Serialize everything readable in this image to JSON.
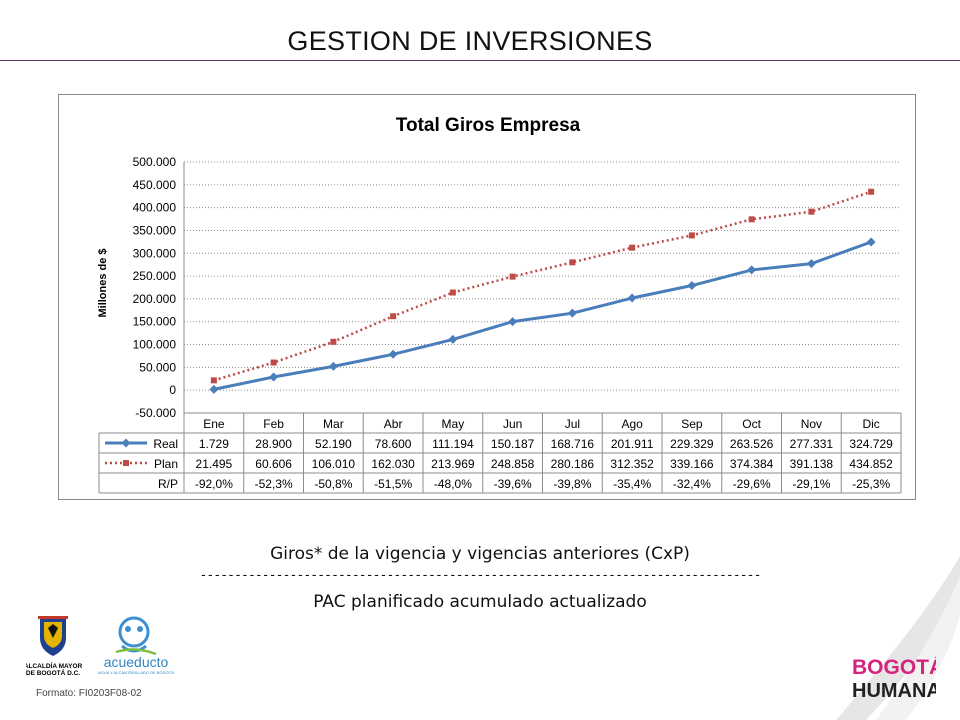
{
  "slide": {
    "title": "GESTION DE INVERSIONES",
    "caption_top": "Giros* de la vigencia y vigencias anteriores (CxP)",
    "caption_dashes": "---------------------------------------------------------------------------------",
    "caption_bottom": "PAC planificado acumulado actualizado",
    "format_code": "Formato: FI0203F08-02"
  },
  "logos": {
    "alcaldia": "ALCALDÍA MAYOR DE BOGOTÁ D.C.",
    "alcaldia_line1": "ALCALDÍA MAYOR",
    "alcaldia_line2": "DE BOGOTÁ D.C.",
    "acueducto": "acueducto",
    "acueducto_sub": "AGUA Y ALCANTARILLADO DE BOGOTÁ",
    "brand_line1": "BOGOTÁ",
    "brand_line2": "HUMANA"
  },
  "colors": {
    "real": "#4a7ebb",
    "plan": "#be4b48",
    "grid": "#8c8c8c",
    "title_rule": "#5b3a63"
  },
  "chart_data": {
    "type": "line",
    "title": "Total Giros Empresa",
    "ylabel": "Millones de $",
    "xlabel": "",
    "ylim": [
      -50000,
      500000
    ],
    "yticks": [
      -50000,
      0,
      50000,
      100000,
      150000,
      200000,
      250000,
      300000,
      350000,
      400000,
      450000,
      500000
    ],
    "ytick_labels": [
      "-50.000",
      "0",
      "50.000",
      "100.000",
      "150.000",
      "200.000",
      "250.000",
      "300.000",
      "350.000",
      "400.000",
      "450.000",
      "500.000"
    ],
    "grid": true,
    "legend_placement": "data-table",
    "categories": [
      "Ene",
      "Feb",
      "Mar",
      "Abr",
      "May",
      "Jun",
      "Jul",
      "Ago",
      "Sep",
      "Oct",
      "Nov",
      "Dic"
    ],
    "series": [
      {
        "name": "Real",
        "style": "solid-diamond",
        "values": [
          1729,
          28900,
          52190,
          78600,
          111194,
          150187,
          168716,
          201911,
          229329,
          263526,
          277331,
          324729
        ],
        "labels": [
          "1.729",
          "28.900",
          "52.190",
          "78.600",
          "111.194",
          "150.187",
          "168.716",
          "201.911",
          "229.329",
          "263.526",
          "277.331",
          "324.729"
        ]
      },
      {
        "name": "Plan",
        "style": "dotted-square",
        "values": [
          21495,
          60606,
          106010,
          162030,
          213969,
          248858,
          280186,
          312352,
          339166,
          374384,
          391138,
          434852
        ],
        "labels": [
          "21.495",
          "60.606",
          "106.010",
          "162.030",
          "213.969",
          "248.858",
          "280.186",
          "312.352",
          "339.166",
          "374.384",
          "391.138",
          "434.852"
        ]
      }
    ],
    "table_rows": [
      {
        "name": "R/P",
        "values": [
          "-92,0%",
          "-52,3%",
          "-50,8%",
          "-51,5%",
          "-48,0%",
          "-39,6%",
          "-39,8%",
          "-35,4%",
          "-32,4%",
          "-29,6%",
          "-29,1%",
          "-25,3%"
        ]
      }
    ]
  }
}
